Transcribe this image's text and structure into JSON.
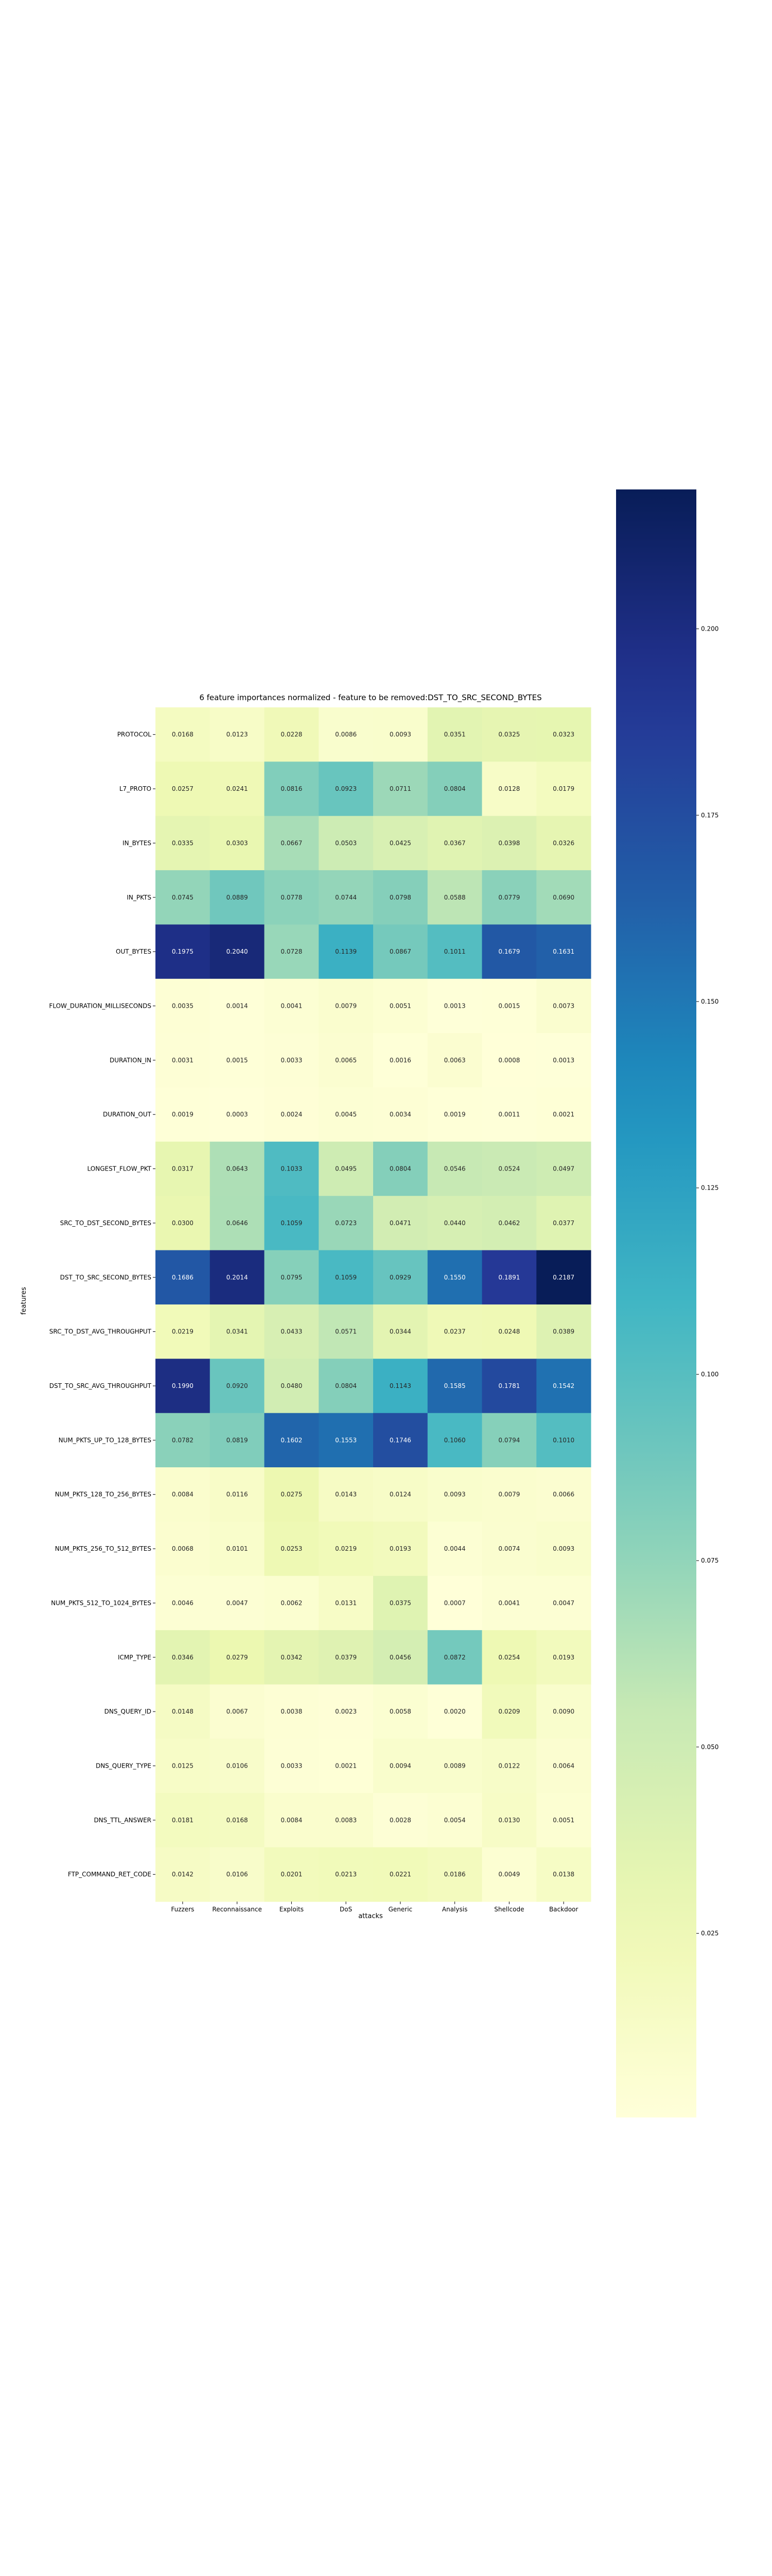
{
  "chart_data": {
    "type": "heatmap",
    "title": "6 feature importances normalized - feature to be removed:DST_TO_SRC_SECOND_BYTES",
    "xlabel": "attacks",
    "ylabel": "features",
    "columns": [
      "Fuzzers",
      "Reconnaissance",
      "Exploits",
      "DoS",
      "Generic",
      "Analysis",
      "Shellcode",
      "Backdoor"
    ],
    "rows": [
      "PROTOCOL",
      "L7_PROTO",
      "IN_BYTES",
      "IN_PKTS",
      "OUT_BYTES",
      "FLOW_DURATION_MILLISECONDS",
      "DURATION_IN",
      "DURATION_OUT",
      "LONGEST_FLOW_PKT",
      "SRC_TO_DST_SECOND_BYTES",
      "DST_TO_SRC_SECOND_BYTES",
      "SRC_TO_DST_AVG_THROUGHPUT",
      "DST_TO_SRC_AVG_THROUGHPUT",
      "NUM_PKTS_UP_TO_128_BYTES",
      "NUM_PKTS_128_TO_256_BYTES",
      "NUM_PKTS_256_TO_512_BYTES",
      "NUM_PKTS_512_TO_1024_BYTES",
      "ICMP_TYPE",
      "DNS_QUERY_ID",
      "DNS_QUERY_TYPE",
      "DNS_TTL_ANSWER",
      "FTP_COMMAND_RET_CODE"
    ],
    "values": [
      [
        0.0168,
        0.0123,
        0.0228,
        0.0086,
        0.0093,
        0.0351,
        0.0325,
        0.0323
      ],
      [
        0.0257,
        0.0241,
        0.0816,
        0.0923,
        0.0711,
        0.0804,
        0.0128,
        0.0179
      ],
      [
        0.0335,
        0.0303,
        0.0667,
        0.0503,
        0.0425,
        0.0367,
        0.0398,
        0.0326
      ],
      [
        0.0745,
        0.0889,
        0.0778,
        0.0744,
        0.0798,
        0.0588,
        0.0779,
        0.069
      ],
      [
        0.1975,
        0.204,
        0.0728,
        0.1139,
        0.0867,
        0.1011,
        0.1679,
        0.1631
      ],
      [
        0.0035,
        0.0014,
        0.0041,
        0.0079,
        0.0051,
        0.0013,
        0.0015,
        0.0073
      ],
      [
        0.0031,
        0.0015,
        0.0033,
        0.0065,
        0.0016,
        0.0063,
        0.0008,
        0.0013
      ],
      [
        0.0019,
        0.0003,
        0.0024,
        0.0045,
        0.0034,
        0.0019,
        0.0011,
        0.0021
      ],
      [
        0.0317,
        0.0643,
        0.1033,
        0.0495,
        0.0804,
        0.0546,
        0.0524,
        0.0497
      ],
      [
        0.03,
        0.0646,
        0.1059,
        0.0723,
        0.0471,
        0.044,
        0.0462,
        0.0377
      ],
      [
        0.1686,
        0.2014,
        0.0795,
        0.1059,
        0.0929,
        0.155,
        0.1891,
        0.2187
      ],
      [
        0.0219,
        0.0341,
        0.0433,
        0.0571,
        0.0344,
        0.0237,
        0.0248,
        0.0389
      ],
      [
        0.199,
        0.092,
        0.048,
        0.0804,
        0.1143,
        0.1585,
        0.1781,
        0.1542
      ],
      [
        0.0782,
        0.0819,
        0.1602,
        0.1553,
        0.1746,
        0.106,
        0.0794,
        0.101
      ],
      [
        0.0084,
        0.0116,
        0.0275,
        0.0143,
        0.0124,
        0.0093,
        0.0079,
        0.0066
      ],
      [
        0.0068,
        0.0101,
        0.0253,
        0.0219,
        0.0193,
        0.0044,
        0.0074,
        0.0093
      ],
      [
        0.0046,
        0.0047,
        0.0062,
        0.0131,
        0.0375,
        0.0007,
        0.0041,
        0.0047
      ],
      [
        0.0346,
        0.0279,
        0.0342,
        0.0379,
        0.0456,
        0.0872,
        0.0254,
        0.0193
      ],
      [
        0.0148,
        0.0067,
        0.0038,
        0.0023,
        0.0058,
        0.002,
        0.0209,
        0.009
      ],
      [
        0.0125,
        0.0106,
        0.0033,
        0.0021,
        0.0094,
        0.0089,
        0.0122,
        0.0064
      ],
      [
        0.0181,
        0.0168,
        0.0084,
        0.0083,
        0.0028,
        0.0054,
        0.013,
        0.0051
      ],
      [
        0.0142,
        0.0106,
        0.0201,
        0.0213,
        0.0221,
        0.0186,
        0.0049,
        0.0138
      ]
    ],
    "colormap": "YlGnBu",
    "vmin": 0.0003,
    "vmax": 0.2187,
    "colorbar_ticks": [
      0.025,
      0.05,
      0.075,
      0.1,
      0.125,
      0.15,
      0.175,
      0.2
    ],
    "colorbar_tick_labels": [
      "0.025",
      "0.050",
      "0.075",
      "0.100",
      "0.125",
      "0.150",
      "0.175",
      "0.200"
    ],
    "annotate": true,
    "legend_position": "right"
  }
}
